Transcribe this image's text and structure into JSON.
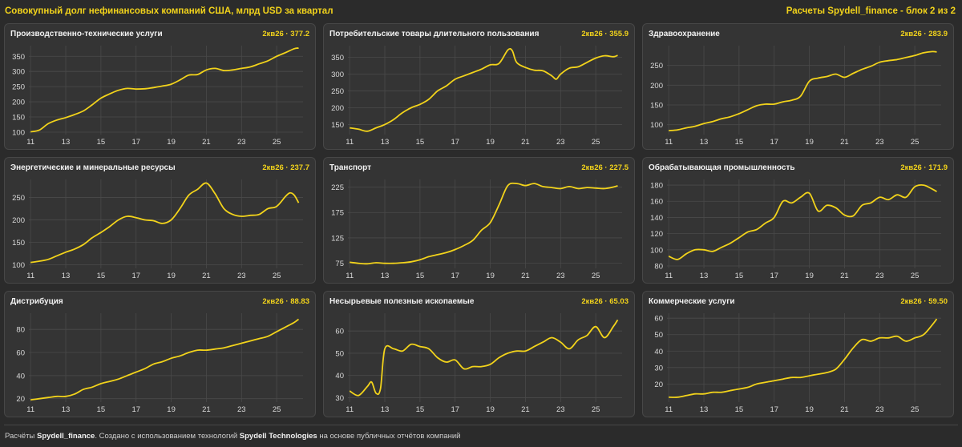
{
  "header": {
    "title": "Совокупный долг нефинансовых компаний США, млрд USD за квартал",
    "source": "Расчеты Spydell_finance - блок 2 из 2"
  },
  "footer": {
    "prefix": "Расчёты ",
    "brand1": "Spydell_finance",
    "mid": ". Создано с использованием технологий ",
    "brand2": "Spydell Technologies",
    "suffix": " на основе публичных отчётов компаний"
  },
  "colors": {
    "line": "#f2d31b",
    "background": "#2b2b2b",
    "panel": "#343434",
    "grid": "#4a4a4a"
  },
  "chart_data": [
    {
      "type": "line",
      "title": "Производственно-технические услуги",
      "label": "2кв26 · 377.2",
      "x_ticks": [
        "11",
        "13",
        "15",
        "17",
        "19",
        "21",
        "23",
        "25"
      ],
      "y_ticks": [
        100,
        150,
        200,
        250,
        300,
        350
      ],
      "ylim": [
        92,
        385
      ],
      "x": [
        11,
        11.5,
        12,
        12.5,
        13,
        13.5,
        14,
        14.5,
        15,
        15.5,
        16,
        16.5,
        17,
        17.5,
        18,
        18.5,
        19,
        19.5,
        20,
        20.5,
        21,
        21.5,
        22,
        22.5,
        23,
        23.5,
        24,
        24.5,
        25,
        25.5,
        26,
        26.25
      ],
      "values": [
        101,
        107,
        128,
        140,
        148,
        158,
        170,
        190,
        212,
        226,
        238,
        244,
        242,
        243,
        247,
        252,
        258,
        272,
        288,
        290,
        305,
        310,
        303,
        305,
        310,
        315,
        325,
        335,
        350,
        362,
        375,
        377
      ]
    },
    {
      "type": "line",
      "title": "Потребительские товары длительного пользования",
      "label": "2кв26 · 355.9",
      "x_ticks": [
        "11",
        "13",
        "15",
        "17",
        "19",
        "21",
        "23",
        "25"
      ],
      "y_ticks": [
        150,
        200,
        250,
        300,
        350
      ],
      "ylim": [
        120,
        385
      ],
      "x": [
        11,
        11.5,
        12,
        12.5,
        13,
        13.5,
        14,
        14.5,
        15,
        15.5,
        16,
        16.5,
        17,
        17.5,
        18,
        18.5,
        19,
        19.5,
        20,
        20.25,
        20.5,
        21,
        21.5,
        22,
        22.5,
        22.75,
        23,
        23.5,
        24,
        24.5,
        25,
        25.5,
        26,
        26.25
      ],
      "values": [
        140,
        136,
        130,
        140,
        150,
        165,
        185,
        200,
        210,
        225,
        250,
        265,
        285,
        295,
        305,
        315,
        328,
        332,
        372,
        370,
        335,
        320,
        312,
        310,
        295,
        285,
        300,
        318,
        322,
        335,
        348,
        355,
        352,
        356
      ]
    },
    {
      "type": "line",
      "title": "Здравоохранение",
      "label": "2кв26 · 283.9",
      "x_ticks": [
        "11",
        "13",
        "15",
        "17",
        "19",
        "21",
        "23",
        "25"
      ],
      "y_ticks": [
        100,
        150,
        200,
        250
      ],
      "ylim": [
        75,
        300
      ],
      "x": [
        11,
        11.5,
        12,
        12.5,
        13,
        13.5,
        14,
        14.5,
        15,
        15.5,
        16,
        16.5,
        17,
        17.5,
        18,
        18.5,
        19,
        19.5,
        20,
        20.5,
        21,
        21.5,
        22,
        22.5,
        23,
        23.5,
        24,
        24.5,
        25,
        25.5,
        26,
        26.25
      ],
      "values": [
        85,
        87,
        92,
        96,
        103,
        108,
        115,
        120,
        128,
        138,
        148,
        152,
        152,
        158,
        162,
        172,
        210,
        218,
        222,
        228,
        220,
        230,
        240,
        248,
        258,
        262,
        265,
        270,
        275,
        282,
        285,
        284
      ]
    },
    {
      "type": "line",
      "title": "Энергетические и минеральные ресурсы",
      "label": "2кв26 · 237.7",
      "x_ticks": [
        "11",
        "13",
        "15",
        "17",
        "19",
        "21",
        "23",
        "25"
      ],
      "y_ticks": [
        100,
        150,
        200,
        250
      ],
      "ylim": [
        92,
        290
      ],
      "x": [
        11,
        11.5,
        12,
        12.5,
        13,
        13.5,
        14,
        14.5,
        15,
        15.5,
        16,
        16.5,
        17,
        17.5,
        18,
        18.5,
        19,
        19.5,
        20,
        20.5,
        21,
        21.5,
        22,
        22.5,
        23,
        23.5,
        24,
        24.5,
        25,
        25.5,
        25.75,
        26,
        26.25
      ],
      "values": [
        105,
        108,
        112,
        120,
        128,
        135,
        145,
        160,
        172,
        185,
        200,
        208,
        205,
        200,
        198,
        192,
        200,
        225,
        255,
        268,
        282,
        258,
        225,
        212,
        208,
        210,
        212,
        225,
        230,
        252,
        260,
        255,
        238
      ]
    },
    {
      "type": "line",
      "title": "Транспорт",
      "label": "2кв26 · 227.5",
      "x_ticks": [
        "11",
        "13",
        "15",
        "17",
        "19",
        "21",
        "23",
        "25"
      ],
      "y_ticks": [
        75,
        125,
        175,
        225
      ],
      "ylim": [
        65,
        240
      ],
      "x": [
        11,
        11.5,
        12,
        12.5,
        13,
        13.5,
        14,
        14.5,
        15,
        15.5,
        16,
        16.5,
        17,
        17.5,
        18,
        18.5,
        19,
        19.5,
        20,
        20.5,
        21,
        21.5,
        22,
        22.5,
        23,
        23.5,
        24,
        24.5,
        25,
        25.5,
        26,
        26.25
      ],
      "values": [
        77,
        75,
        74,
        76,
        75,
        75,
        76,
        78,
        82,
        88,
        92,
        96,
        102,
        110,
        120,
        140,
        155,
        190,
        228,
        232,
        228,
        232,
        226,
        224,
        222,
        226,
        222,
        224,
        223,
        222,
        225,
        227.5
      ]
    },
    {
      "type": "line",
      "title": "Обрабатывающая промышленность",
      "label": "2кв26 · 171.9",
      "x_ticks": [
        "11",
        "13",
        "15",
        "17",
        "19",
        "21",
        "23",
        "25"
      ],
      "y_ticks": [
        80,
        100,
        120,
        140,
        160,
        180
      ],
      "ylim": [
        77,
        187
      ],
      "x": [
        11,
        11.5,
        12,
        12.5,
        13,
        13.5,
        14,
        14.5,
        15,
        15.5,
        16,
        16.5,
        17,
        17.5,
        18,
        18.5,
        19,
        19.5,
        20,
        20.5,
        21,
        21.5,
        22,
        22.5,
        23,
        23.5,
        24,
        24.5,
        25,
        25.5,
        26,
        26.25
      ],
      "values": [
        92,
        88,
        95,
        100,
        100,
        98,
        103,
        108,
        115,
        122,
        125,
        133,
        140,
        160,
        158,
        165,
        170,
        148,
        155,
        152,
        143,
        142,
        155,
        158,
        165,
        162,
        168,
        165,
        178,
        180,
        175,
        171.9
      ]
    },
    {
      "type": "line",
      "title": "Дистрибуция",
      "label": "2кв26 · 88.83",
      "x_ticks": [
        "11",
        "13",
        "15",
        "17",
        "19",
        "21",
        "23",
        "25"
      ],
      "y_ticks": [
        20,
        40,
        60,
        80
      ],
      "ylim": [
        17,
        94
      ],
      "x": [
        11,
        11.5,
        12,
        12.5,
        13,
        13.5,
        14,
        14.5,
        15,
        15.5,
        16,
        16.5,
        17,
        17.5,
        18,
        18.5,
        19,
        19.5,
        20,
        20.5,
        21,
        21.5,
        22,
        22.5,
        23,
        23.5,
        24,
        24.5,
        25,
        25.5,
        26,
        26.25
      ],
      "values": [
        19,
        20,
        21,
        22,
        22,
        24,
        28,
        30,
        33,
        35,
        37,
        40,
        43,
        46,
        50,
        52,
        55,
        57,
        60,
        62,
        62,
        63,
        64,
        66,
        68,
        70,
        72,
        74,
        78,
        82,
        86,
        88.83
      ]
    },
    {
      "type": "line",
      "title": "Несырьевые полезные ископаемые",
      "label": "2кв26 · 65.03",
      "x_ticks": [
        "11",
        "13",
        "15",
        "17",
        "19",
        "21",
        "23",
        "25"
      ],
      "y_ticks": [
        30,
        40,
        50,
        60
      ],
      "ylim": [
        28,
        68
      ],
      "x": [
        11,
        11.5,
        12,
        12.25,
        12.5,
        12.75,
        13,
        13.5,
        14,
        14.5,
        15,
        15.5,
        16,
        16.5,
        17,
        17.5,
        18,
        18.5,
        19,
        19.5,
        20,
        20.5,
        21,
        21.5,
        22,
        22.5,
        23,
        23.5,
        24,
        24.5,
        25,
        25.5,
        26,
        26.25
      ],
      "values": [
        33,
        31,
        35,
        37,
        32,
        34,
        52,
        52,
        51,
        54,
        53,
        52,
        48,
        46,
        47,
        43,
        44,
        44,
        45,
        48,
        50,
        51,
        51,
        53,
        55,
        57,
        55,
        52,
        56,
        58,
        62,
        57,
        62,
        65
      ]
    },
    {
      "type": "line",
      "title": "Коммерческие услуги",
      "label": "2кв26 · 59.50",
      "x_ticks": [
        "11",
        "13",
        "15",
        "17",
        "19",
        "21",
        "23",
        "25"
      ],
      "y_ticks": [
        20,
        30,
        40,
        50,
        60
      ],
      "ylim": [
        9,
        63
      ],
      "x": [
        11,
        11.5,
        12,
        12.5,
        13,
        13.5,
        14,
        14.5,
        15,
        15.5,
        16,
        16.5,
        17,
        17.5,
        18,
        18.5,
        19,
        19.5,
        20,
        20.5,
        21,
        21.5,
        22,
        22.5,
        23,
        23.5,
        24,
        24.5,
        25,
        25.5,
        26,
        26.25
      ],
      "values": [
        12,
        12,
        13,
        14,
        14,
        15,
        15,
        16,
        17,
        18,
        20,
        21,
        22,
        23,
        24,
        24,
        25,
        26,
        27,
        29,
        35,
        42,
        47,
        46,
        48,
        48,
        49,
        46,
        48,
        50,
        56,
        59.5
      ]
    }
  ]
}
